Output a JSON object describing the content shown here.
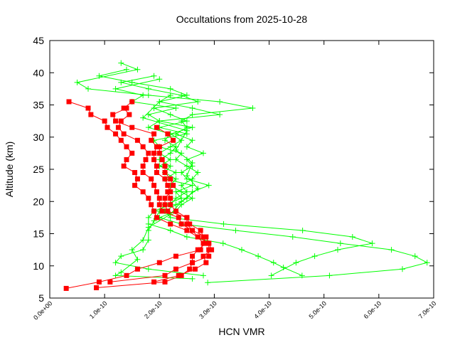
{
  "chart_data": {
    "type": "line",
    "title": "Occultations from 2025-10-28",
    "xlabel": "HCN VMR",
    "ylabel": "Altitude (km)",
    "xlim": [
      0,
      7e-10
    ],
    "ylim": [
      5,
      45
    ],
    "x_ticks": [
      0,
      1e-10,
      2e-10,
      3e-10,
      4e-10,
      5e-10,
      6e-10,
      7e-10
    ],
    "x_tick_labels": [
      "0.0e+00",
      "1.0e-10",
      "2.0e-10",
      "3.0e-10",
      "4.0e-10",
      "5.0e-10",
      "6.0e-10",
      "7.0e-10"
    ],
    "y_ticks": [
      5,
      10,
      15,
      20,
      25,
      30,
      35,
      40,
      45
    ],
    "y_tick_labels": [
      "5",
      "10",
      "15",
      "20",
      "25",
      "30",
      "35",
      "40",
      "45"
    ],
    "grid": false,
    "colors": {
      "red_series": "#ff0000",
      "green_series": "#00ff00"
    },
    "series": [
      {
        "color": "#ff0000",
        "marker": "square",
        "points": [
          [
            3.5e-11,
            35.5
          ],
          [
            7e-11,
            34.5
          ],
          [
            7.5e-11,
            33.5
          ],
          [
            1e-10,
            32.5
          ],
          [
            1.05e-10,
            31.5
          ],
          [
            1.2e-10,
            30.5
          ],
          [
            1.3e-10,
            29.5
          ],
          [
            1.4e-10,
            28.5
          ],
          [
            1.5e-10,
            27.5
          ],
          [
            1.4e-10,
            26.5
          ],
          [
            1.35e-10,
            25.5
          ],
          [
            1.55e-10,
            24.5
          ],
          [
            1.6e-10,
            23.5
          ],
          [
            1.55e-10,
            22.5
          ],
          [
            1.7e-10,
            21.5
          ],
          [
            1.8e-10,
            20.5
          ],
          [
            1.85e-10,
            19.5
          ],
          [
            1.9e-10,
            18.5
          ],
          [
            1.95e-10,
            17.5
          ],
          [
            2.2e-10,
            16.5
          ],
          [
            2.5e-10,
            15.5
          ],
          [
            2.7e-10,
            14.5
          ],
          [
            2.8e-10,
            13.5
          ],
          [
            2.75e-10,
            12.5
          ],
          [
            2.3e-10,
            11.5
          ],
          [
            2e-10,
            10.5
          ],
          [
            1.6e-10,
            9.5
          ],
          [
            1.4e-10,
            8.5
          ],
          [
            9e-11,
            7.5
          ],
          [
            3e-11,
            6.5
          ]
        ]
      },
      {
        "color": "#ff0000",
        "marker": "square",
        "points": [
          [
            1.5e-10,
            35.5
          ],
          [
            1.35e-10,
            34.5
          ],
          [
            1.45e-10,
            33.5
          ],
          [
            1.3e-10,
            32.5
          ],
          [
            1.25e-10,
            31.5
          ],
          [
            1.35e-10,
            30.5
          ],
          [
            1.6e-10,
            29.5
          ],
          [
            1.7e-10,
            28.5
          ],
          [
            1.8e-10,
            27.5
          ],
          [
            1.75e-10,
            26.5
          ],
          [
            1.7e-10,
            25.5
          ],
          [
            1.7e-10,
            24.5
          ],
          [
            1.85e-10,
            23.5
          ],
          [
            1.9e-10,
            22.5
          ],
          [
            1.95e-10,
            21.5
          ],
          [
            2e-10,
            20.5
          ],
          [
            2e-10,
            19.5
          ],
          [
            2.05e-10,
            18.5
          ],
          [
            2.35e-10,
            17.5
          ],
          [
            2.4e-10,
            16.5
          ],
          [
            2.6e-10,
            15.5
          ],
          [
            2.85e-10,
            14.5
          ],
          [
            2.9e-10,
            13.5
          ],
          [
            2.9e-10,
            12.5
          ],
          [
            2.9e-10,
            11.5
          ],
          [
            2.6e-10,
            10.5
          ],
          [
            2.55e-10,
            9.5
          ],
          [
            2.4e-10,
            8.5
          ],
          [
            2.1e-10,
            7.5
          ],
          [
            8.5e-11,
            6.6
          ]
        ]
      },
      {
        "color": "#ff0000",
        "marker": "square",
        "points": [
          [
            1.4e-10,
            34.5
          ],
          [
            1.15e-10,
            33.5
          ],
          [
            1.2e-10,
            32.5
          ],
          [
            1.5e-10,
            31.5
          ],
          [
            1.9e-10,
            30.5
          ],
          [
            1.85e-10,
            29.5
          ],
          [
            1.95e-10,
            28.5
          ],
          [
            1.9e-10,
            27.5
          ],
          [
            1.9e-10,
            26.5
          ],
          [
            1.95e-10,
            25.5
          ],
          [
            1.95e-10,
            24.5
          ],
          [
            2.1e-10,
            23.5
          ],
          [
            2.15e-10,
            22.5
          ],
          [
            2.2e-10,
            21.5
          ],
          [
            2.1e-10,
            20.5
          ],
          [
            2.1e-10,
            19.5
          ],
          [
            2.15e-10,
            18.5
          ],
          [
            2.5e-10,
            17.5
          ],
          [
            2.55e-10,
            16.5
          ],
          [
            2.75e-10,
            15.5
          ],
          [
            2.8e-10,
            14.5
          ],
          [
            2.85e-10,
            13.5
          ],
          [
            2.7e-10,
            12.5
          ],
          [
            2.6e-10,
            11.5
          ],
          [
            2.6e-10,
            10.5
          ],
          [
            2.3e-10,
            9.5
          ],
          [
            2.1e-10,
            8.5
          ],
          [
            1.1e-10,
            7.5
          ]
        ]
      },
      {
        "color": "#ff0000",
        "marker": "square",
        "points": [
          [
            1.95e-10,
            31.5
          ],
          [
            2.15e-10,
            30.5
          ],
          [
            2.25e-10,
            29.5
          ],
          [
            2e-10,
            28.5
          ],
          [
            2e-10,
            27.5
          ],
          [
            2.05e-10,
            26.5
          ],
          [
            2.1e-10,
            25.5
          ],
          [
            2.1e-10,
            24.5
          ],
          [
            2.2e-10,
            23.5
          ],
          [
            2.25e-10,
            22.5
          ],
          [
            2.15e-10,
            21.5
          ],
          [
            2.2e-10,
            20.5
          ],
          [
            2.2e-10,
            19.5
          ],
          [
            2.3e-10,
            18.5
          ],
          [
            2.5e-10,
            17.5
          ],
          [
            2.5e-10,
            16.5
          ],
          [
            2.6e-10,
            15.5
          ],
          [
            2.7e-10,
            14.5
          ],
          [
            2.9e-10,
            13.5
          ],
          [
            2.95e-10,
            12.5
          ],
          [
            2.8e-10,
            11.5
          ],
          [
            2.85e-10,
            10.5
          ],
          [
            2.65e-10,
            9.5
          ],
          [
            2.35e-10,
            8.5
          ],
          [
            1.9e-10,
            7.5
          ]
        ]
      },
      {
        "color": "#00ff00",
        "marker": "plus",
        "points": [
          [
            1.3e-10,
            41.5
          ],
          [
            1.6e-10,
            40.5
          ],
          [
            5e-11,
            38.5
          ],
          [
            7e-11,
            37.5
          ],
          [
            1.8e-10,
            36.5
          ],
          [
            3.1e-10,
            35.5
          ],
          [
            3.7e-10,
            34.5
          ],
          [
            2.6e-10,
            33.5
          ],
          [
            2.4e-10,
            32.5
          ],
          [
            2.5e-10,
            31.5
          ],
          [
            2.3e-10,
            30.5
          ],
          [
            2.6e-10,
            29.5
          ],
          [
            2.5e-10,
            28.5
          ],
          [
            2.8e-10,
            27.5
          ],
          [
            2.5e-10,
            26.5
          ],
          [
            2.6e-10,
            25.5
          ],
          [
            2.4e-10,
            24.5
          ],
          [
            2.5e-10,
            23.5
          ],
          [
            2.9e-10,
            22.5
          ],
          [
            2.6e-10,
            21.5
          ],
          [
            2.5e-10,
            20.5
          ],
          [
            2.3e-10,
            19.5
          ],
          [
            2.1e-10,
            18.5
          ],
          [
            2.2e-10,
            17.5
          ],
          [
            3.17e-10,
            16.5
          ],
          [
            4.61e-10,
            15.5
          ],
          [
            5.52e-10,
            14.5
          ],
          [
            5.88e-10,
            13.5
          ],
          [
            5.25e-10,
            12.5
          ],
          [
            4.83e-10,
            11.5
          ],
          [
            4.49e-10,
            10.5
          ],
          [
            4.04e-10,
            8.5
          ]
        ]
      },
      {
        "color": "#00ff00",
        "marker": "plus",
        "points": [
          [
            1.4e-10,
            40.5
          ],
          [
            9e-11,
            39.5
          ],
          [
            1.5e-10,
            38.5
          ],
          [
            2.2e-10,
            37.5
          ],
          [
            2.5e-10,
            36.5
          ],
          [
            2e-10,
            35.5
          ],
          [
            2.6e-10,
            34.5
          ],
          [
            3.1e-10,
            33.5
          ],
          [
            2e-10,
            32.5
          ],
          [
            1.8e-10,
            31.5
          ],
          [
            2.2e-10,
            30.5
          ],
          [
            2.1e-10,
            29.5
          ],
          [
            2.3e-10,
            28.5
          ],
          [
            2.2e-10,
            27.5
          ],
          [
            2e-10,
            26.5
          ],
          [
            2.2e-10,
            25.5
          ],
          [
            2.1e-10,
            24.5
          ],
          [
            2.3e-10,
            23.5
          ],
          [
            2.2e-10,
            22.5
          ],
          [
            2.4e-10,
            21.5
          ],
          [
            2.6e-10,
            20.5
          ],
          [
            2.4e-10,
            19.5
          ],
          [
            2.3e-10,
            18.5
          ],
          [
            2e-10,
            17.5
          ],
          [
            2.4e-10,
            16.5
          ],
          [
            3.39e-10,
            15.5
          ],
          [
            4.43e-10,
            14.5
          ],
          [
            5.3e-10,
            13.5
          ],
          [
            6.23e-10,
            12.5
          ],
          [
            6.66e-10,
            11.5
          ],
          [
            6.88e-10,
            10.5
          ],
          [
            6.43e-10,
            9.5
          ],
          [
            5.1e-10,
            8.5
          ],
          [
            2.88e-10,
            7.4
          ]
        ]
      },
      {
        "color": "#00ff00",
        "marker": "plus",
        "points": [
          [
            1.9e-10,
            39.5
          ],
          [
            1.3e-10,
            38.5
          ],
          [
            1.8e-10,
            37.5
          ],
          [
            2.4e-10,
            36.5
          ],
          [
            2.7e-10,
            35.5
          ],
          [
            1.9e-10,
            34.5
          ],
          [
            2.2e-10,
            33.5
          ],
          [
            2.5e-10,
            32.5
          ],
          [
            2e-10,
            31.5
          ],
          [
            2.5e-10,
            30.5
          ],
          [
            1.9e-10,
            29.5
          ],
          [
            2e-10,
            28.5
          ],
          [
            2.4e-10,
            27.5
          ],
          [
            2.3e-10,
            26.5
          ],
          [
            2.5e-10,
            25.5
          ],
          [
            2.7e-10,
            24.5
          ],
          [
            2.6e-10,
            23.5
          ],
          [
            2.4e-10,
            22.5
          ],
          [
            2.5e-10,
            21.5
          ],
          [
            2.3e-10,
            20.5
          ],
          [
            2.2e-10,
            19.5
          ],
          [
            1.9e-10,
            18.5
          ],
          [
            1.8e-10,
            17.5
          ],
          [
            1.8e-10,
            16.5
          ],
          [
            2.2e-10,
            15.5
          ],
          [
            2.5e-10,
            14.5
          ],
          [
            3.16e-10,
            13.5
          ],
          [
            3.5e-10,
            12.5
          ],
          [
            3.8e-10,
            11.5
          ],
          [
            4.08e-10,
            10.5
          ],
          [
            4.26e-10,
            9.75
          ],
          [
            4.6e-10,
            8.5
          ]
        ]
      },
      {
        "color": "#00ff00",
        "marker": "plus",
        "points": [
          [
            2e-10,
            39.0
          ],
          [
            1.2e-10,
            37.5
          ],
          [
            1.7e-10,
            36.5
          ],
          [
            1.5e-10,
            35.5
          ],
          [
            2.3e-10,
            34.5
          ],
          [
            1.8e-10,
            33.5
          ],
          [
            2e-10,
            32.5
          ],
          [
            2.6e-10,
            31.5
          ],
          [
            2.2e-10,
            30.5
          ],
          [
            2.4e-10,
            29.5
          ],
          [
            2.2e-10,
            28.5
          ],
          [
            2e-10,
            27.5
          ],
          [
            2.2e-10,
            26.5
          ],
          [
            2e-10,
            25.5
          ],
          [
            2.3e-10,
            24.5
          ],
          [
            2.1e-10,
            23.5
          ],
          [
            2.6e-10,
            22.5
          ],
          [
            2.3e-10,
            21.5
          ],
          [
            2.4e-10,
            20.5
          ],
          [
            2.1e-10,
            19.5
          ],
          [
            2e-10,
            18.5
          ],
          [
            1.9e-10,
            17.0
          ],
          [
            1.8e-10,
            15.5
          ],
          [
            1.8e-10,
            14.0
          ],
          [
            1.7e-10,
            12.5
          ],
          [
            1.3e-10,
            11.5
          ],
          [
            1.2e-10,
            10.5
          ],
          [
            1.8e-10,
            9.5
          ],
          [
            2.8e-10,
            8.5
          ]
        ]
      },
      {
        "color": "#00ff00",
        "marker": "plus",
        "points": [
          [
            2.2e-10,
            36.5
          ],
          [
            2e-10,
            35.5
          ],
          [
            1.7e-10,
            33.0
          ],
          [
            2.5e-10,
            31.0
          ],
          [
            2.3e-10,
            28.0
          ],
          [
            2.6e-10,
            26.0
          ],
          [
            2.5e-10,
            24.0
          ],
          [
            2.7e-10,
            22.0
          ],
          [
            2.4e-10,
            20.0
          ],
          [
            2.2e-10,
            18.0
          ],
          [
            1.8e-10,
            16.0
          ],
          [
            1.7e-10,
            14.0
          ],
          [
            1.5e-10,
            12.5
          ],
          [
            1.6e-10,
            11.0
          ],
          [
            1.3e-10,
            9.0
          ],
          [
            1.2e-10,
            8.5
          ],
          [
            2.6e-10,
            8.0
          ]
        ]
      }
    ]
  }
}
